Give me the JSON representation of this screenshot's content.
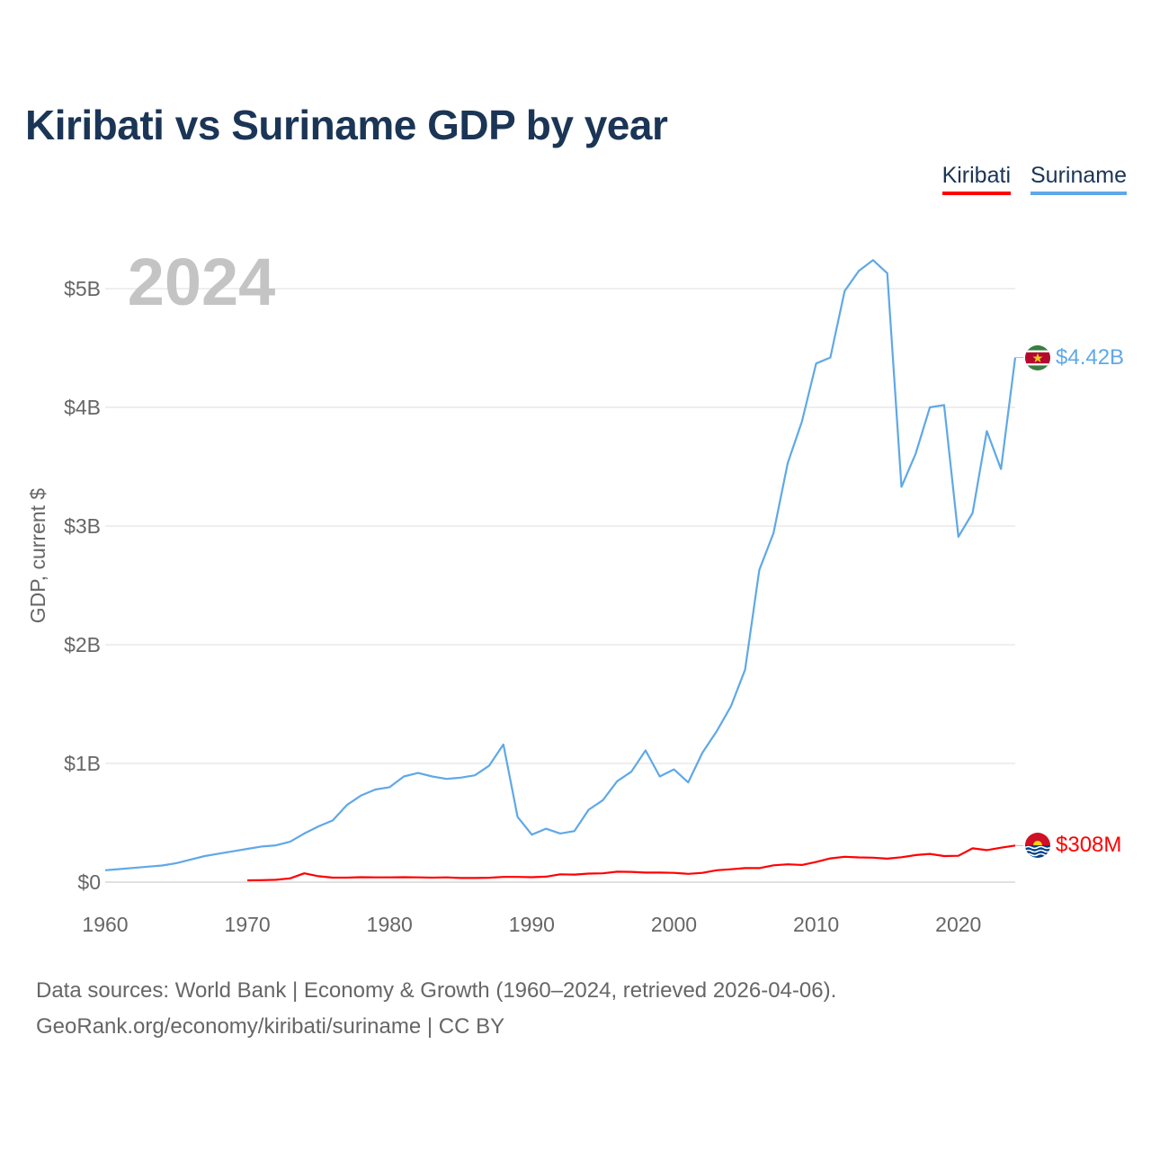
{
  "title": "Kiribati vs Suriname GDP by year",
  "year_watermark": "2024",
  "legend": [
    {
      "label": "Kiribati",
      "color": "#ff0000"
    },
    {
      "label": "Suriname",
      "color": "#5fa8e8"
    }
  ],
  "source_line1": "Data sources: World Bank | Economy & Growth (1960–2024, retrieved 2026-04-06).",
  "source_line2": "GeoRank.org/economy/kiribati/suriname | CC BY",
  "chart_data": {
    "type": "line",
    "title": "Kiribati vs Suriname GDP by year",
    "xlabel": "",
    "ylabel": "GDP, current $",
    "xlim": [
      1960,
      2024
    ],
    "ylim": [
      0,
      5000000000
    ],
    "x_ticks": [
      1960,
      1970,
      1980,
      1990,
      2000,
      2010,
      2020
    ],
    "x_tick_labels": [
      "1960",
      "1970",
      "1980",
      "1990",
      "2000",
      "2010",
      "2020"
    ],
    "y_ticks": [
      0,
      1000000000,
      2000000000,
      3000000000,
      4000000000,
      5000000000
    ],
    "y_tick_labels": [
      "$0",
      "$1B",
      "$2B",
      "$3B",
      "$4B",
      "$5B"
    ],
    "grid": true,
    "legend_position": "top-right",
    "series": [
      {
        "name": "Suriname",
        "color": "#5fa8e8",
        "end_label": "$4.42B",
        "flag": "suriname-flag-icon",
        "x": [
          1960,
          1961,
          1962,
          1963,
          1964,
          1965,
          1966,
          1967,
          1968,
          1969,
          1970,
          1971,
          1972,
          1973,
          1974,
          1975,
          1976,
          1977,
          1978,
          1979,
          1980,
          1981,
          1982,
          1983,
          1984,
          1985,
          1986,
          1987,
          1988,
          1989,
          1990,
          1991,
          1992,
          1993,
          1994,
          1995,
          1996,
          1997,
          1998,
          1999,
          2000,
          2001,
          2002,
          2003,
          2004,
          2005,
          2006,
          2007,
          2008,
          2009,
          2010,
          2011,
          2012,
          2013,
          2014,
          2015,
          2016,
          2017,
          2018,
          2019,
          2020,
          2021,
          2022,
          2023,
          2024
        ],
        "values": [
          100000000,
          110000000,
          120000000,
          130000000,
          140000000,
          160000000,
          190000000,
          220000000,
          240000000,
          260000000,
          280000000,
          300000000,
          310000000,
          340000000,
          410000000,
          470000000,
          520000000,
          650000000,
          730000000,
          780000000,
          800000000,
          890000000,
          920000000,
          890000000,
          870000000,
          880000000,
          900000000,
          980000000,
          1160000000,
          550000000,
          400000000,
          450000000,
          410000000,
          430000000,
          610000000,
          690000000,
          850000000,
          930000000,
          1110000000,
          890000000,
          950000000,
          840000000,
          1090000000,
          1270000000,
          1480000000,
          1790000000,
          2630000000,
          2940000000,
          3530000000,
          3880000000,
          4370000000,
          4420000000,
          4980000000,
          5150000000,
          5240000000,
          5130000000,
          3330000000,
          3610000000,
          4000000000,
          4020000000,
          2910000000,
          3110000000,
          3800000000,
          3480000000,
          4420000000
        ]
      },
      {
        "name": "Kiribati",
        "color": "#ff0000",
        "end_label": "$308M",
        "flag": "kiribati-flag-icon",
        "x": [
          1970,
          1971,
          1972,
          1973,
          1974,
          1975,
          1976,
          1977,
          1978,
          1979,
          1980,
          1981,
          1982,
          1983,
          1984,
          1985,
          1986,
          1987,
          1988,
          1989,
          1990,
          1991,
          1992,
          1993,
          1994,
          1995,
          1996,
          1997,
          1998,
          1999,
          2000,
          2001,
          2002,
          2003,
          2004,
          2005,
          2006,
          2007,
          2008,
          2009,
          2010,
          2011,
          2012,
          2013,
          2014,
          2015,
          2016,
          2017,
          2018,
          2019,
          2020,
          2021,
          2022,
          2023,
          2024
        ],
        "values": [
          15000000,
          17000000,
          20000000,
          32000000,
          74000000,
          50000000,
          38000000,
          38000000,
          42000000,
          40000000,
          40000000,
          42000000,
          40000000,
          38000000,
          40000000,
          35000000,
          35000000,
          37000000,
          44000000,
          44000000,
          42000000,
          46000000,
          66000000,
          64000000,
          72000000,
          74000000,
          88000000,
          86000000,
          80000000,
          80000000,
          78000000,
          70000000,
          78000000,
          100000000,
          108000000,
          118000000,
          118000000,
          142000000,
          150000000,
          145000000,
          170000000,
          200000000,
          214000000,
          208000000,
          206000000,
          198000000,
          210000000,
          228000000,
          238000000,
          220000000,
          222000000,
          285000000,
          270000000,
          290000000,
          308000000
        ]
      }
    ]
  }
}
